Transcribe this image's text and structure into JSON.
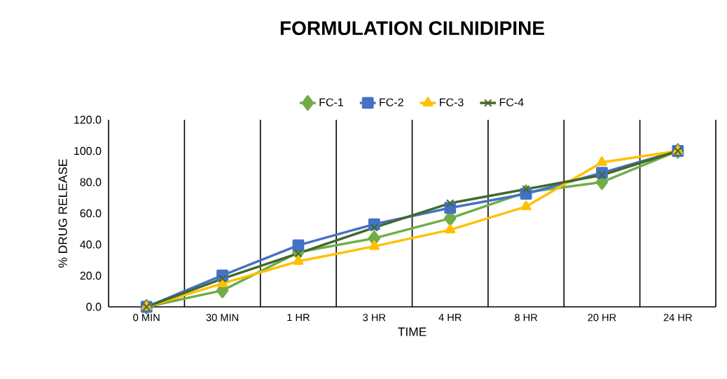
{
  "chart_data": {
    "type": "line",
    "title": "FORMULATION CILNIDIPINE",
    "xlabel": "TIME",
    "ylabel": "% DRUG RELEASE",
    "categories": [
      "0 MIN",
      "30 MIN",
      "1 HR",
      "3 HR",
      "4 HR",
      "8 HR",
      "20 HR",
      "24 HR"
    ],
    "series": [
      {
        "name": "FC-1",
        "color": "#70ad47",
        "marker": "diamond",
        "values": [
          0,
          10.5,
          35,
          44,
          56.8,
          73.5,
          80,
          100
        ]
      },
      {
        "name": "FC-2",
        "color": "#4472c4",
        "marker": "square",
        "values": [
          0,
          20.2,
          39.5,
          53,
          63.5,
          72.5,
          86,
          100
        ]
      },
      {
        "name": "FC-3",
        "color": "#ffc000",
        "marker": "triangle",
        "values": [
          0,
          15,
          29.2,
          38.8,
          49.4,
          64.3,
          92.7,
          100
        ]
      },
      {
        "name": "FC-4",
        "color": "#43682b",
        "marker": "cross",
        "values": [
          0,
          18,
          34.3,
          50.8,
          66.5,
          75.5,
          84.5,
          100
        ]
      }
    ],
    "ylim": [
      0,
      120
    ],
    "yticks": [
      {
        "value": 0,
        "label": "0.0"
      },
      {
        "value": 20,
        "label": "20.0"
      },
      {
        "value": 40,
        "label": "40.0"
      },
      {
        "value": 60,
        "label": "60.0"
      },
      {
        "value": 80,
        "label": "80.0"
      },
      {
        "value": 100,
        "label": "100.0"
      },
      {
        "value": 120,
        "label": "120.0"
      }
    ],
    "grid": "x",
    "legend": "top",
    "line_style": "solid"
  }
}
